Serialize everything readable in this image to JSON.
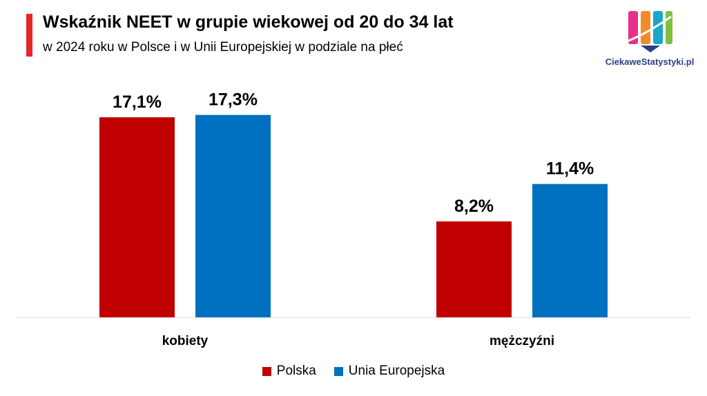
{
  "header": {
    "title": "Wskaźnik NEET w grupie wiekowej od 20 do 34 lat",
    "subtitle": "w 2024 roku w Polsce i w Unii Europejskiej w podziale na płeć",
    "accent_color": "#e8252a"
  },
  "logo": {
    "text": "CiekaweStatystyki.pl",
    "colors": [
      "#e6308a",
      "#f28c28",
      "#1aa6c8",
      "#7fbf3f",
      "#2c3e8a"
    ]
  },
  "chart_data": {
    "type": "bar",
    "title": "Wskaźnik NEET w grupie wiekowej od 20 do 34 lat",
    "subtitle": "w 2024 roku w Polsce i w Unii Europejskiej w podziale na płeć",
    "categories": [
      "kobiety",
      "mężczyźni"
    ],
    "series": [
      {
        "name": "Polska",
        "values": [
          17.1,
          8.2
        ],
        "labels": [
          "17,1%",
          "8,2%"
        ],
        "color": "#c00000"
      },
      {
        "name": "Unia Europejska",
        "values": [
          17.3,
          11.4
        ],
        "labels": [
          "17,3%",
          "11,4%"
        ],
        "color": "#0070c0"
      }
    ],
    "xlabel": "",
    "ylabel": "",
    "ylim": [
      0,
      18
    ],
    "grid": false,
    "legend_position": "bottom"
  }
}
